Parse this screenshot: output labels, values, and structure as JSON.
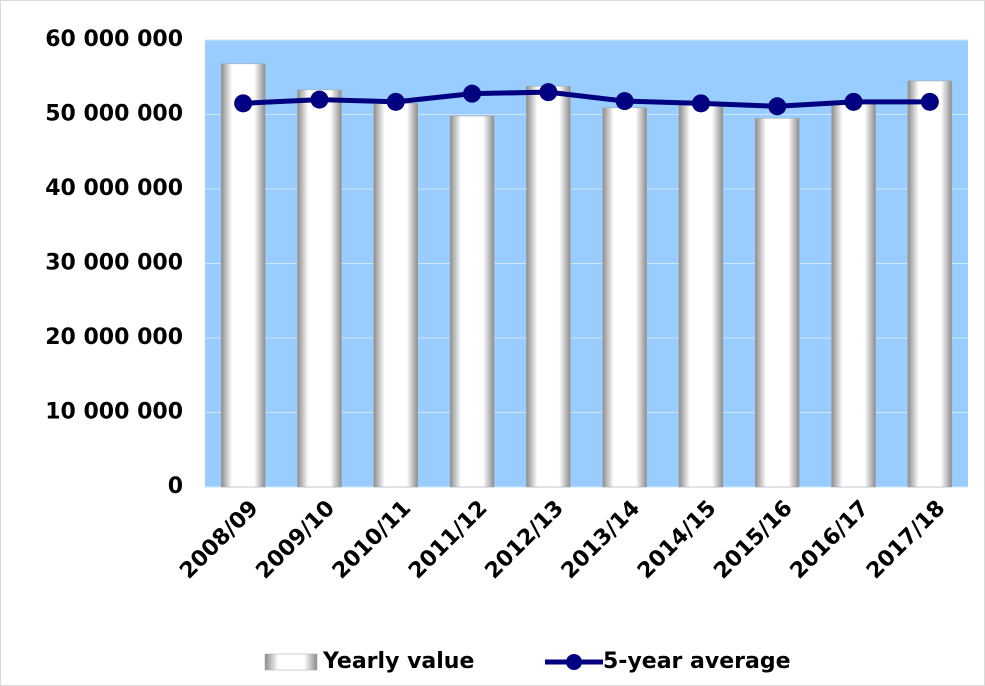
{
  "chart_data": {
    "type": "bar",
    "categories": [
      "2008/09",
      "2009/10",
      "2010/11",
      "2011/12",
      "2012/13",
      "2013/14",
      "2014/15",
      "2015/16",
      "2016/17",
      "2017/18"
    ],
    "series": [
      {
        "name": "Yearly value",
        "type": "bar",
        "color": "#ffffff",
        "values": [
          56800000,
          53300000,
          51500000,
          49800000,
          53800000,
          50900000,
          51400000,
          49500000,
          51500000,
          54500000
        ]
      },
      {
        "name": "5-year average",
        "type": "line",
        "color": "#000080",
        "values": [
          51500000,
          52000000,
          51700000,
          52800000,
          53000000,
          51800000,
          51500000,
          51100000,
          51700000,
          51700000
        ]
      }
    ],
    "ylim": [
      0,
      60000000
    ],
    "yticks": [
      0,
      {
        "value": 10000000,
        "label": "10 000 000"
      },
      {
        "value": 20000000,
        "label": "20 000 000"
      },
      {
        "value": 30000000,
        "label": "30 000 000"
      },
      {
        "value": 40000000,
        "label": "40 000 000"
      },
      {
        "value": 50000000,
        "label": "50 000 000"
      },
      {
        "value": 60000000,
        "label": "60 000 000"
      }
    ],
    "grid": true,
    "plot_background": "#99ccff",
    "legend": "bottom"
  }
}
